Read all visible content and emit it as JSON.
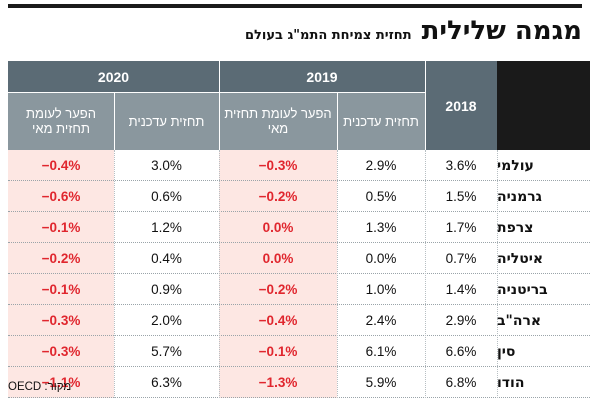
{
  "title": "מגמה שלילית",
  "subtitle": "תחזית צמיחת התמ\"ג בעולם",
  "source": "מקור: OECD",
  "colors": {
    "negative": "#e0262e",
    "highlight": "#fde7e3",
    "header": "#5b6b75",
    "subheader": "#8a979e"
  },
  "chart_data": {
    "type": "table",
    "column_groups": [
      {
        "year": "2018",
        "columns": [
          ""
        ]
      },
      {
        "year": "2019",
        "columns": [
          "תחזית עדכנית",
          "הפער לעומת תחזית מאי"
        ]
      },
      {
        "year": "2020",
        "columns": [
          "תחזית עדכנית",
          "הפער לעומת תחזית מאי"
        ]
      }
    ],
    "rows": [
      {
        "country": "עולמי",
        "y2018": "3.6%",
        "f2019": "2.9%",
        "g2019": "−0.3%",
        "f2020": "3.0%",
        "g2020": "−0.4%"
      },
      {
        "country": "גרמניה",
        "y2018": "1.5%",
        "f2019": "0.5%",
        "g2019": "−0.2%",
        "f2020": "0.6%",
        "g2020": "−0.6%"
      },
      {
        "country": "צרפת",
        "y2018": "1.7%",
        "f2019": "1.3%",
        "g2019": "0.0%",
        "f2020": "1.2%",
        "g2020": "−0.1%"
      },
      {
        "country": "איטליה",
        "y2018": "0.7%",
        "f2019": "0.0%",
        "g2019": "0.0%",
        "f2020": "0.4%",
        "g2020": "−0.2%"
      },
      {
        "country": "בריטניה",
        "y2018": "1.4%",
        "f2019": "1.0%",
        "g2019": "−0.2%",
        "f2020": "0.9%",
        "g2020": "−0.1%"
      },
      {
        "country": "ארה\"ב",
        "y2018": "2.9%",
        "f2019": "2.4%",
        "g2019": "−0.4%",
        "f2020": "2.0%",
        "g2020": "−0.3%"
      },
      {
        "country": "סין",
        "y2018": "6.6%",
        "f2019": "6.1%",
        "g2019": "−0.1%",
        "f2020": "5.7%",
        "g2020": "−0.3%"
      },
      {
        "country": "הודו",
        "y2018": "6.8%",
        "f2019": "5.9%",
        "g2019": "−1.3%",
        "f2020": "6.3%",
        "g2020": "−1.1%"
      }
    ]
  }
}
